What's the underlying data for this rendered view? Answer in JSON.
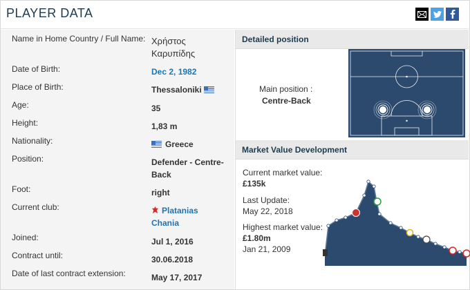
{
  "header": {
    "title": "PLAYER DATA",
    "share_icons": [
      "mail-icon",
      "twitter-icon",
      "facebook-icon"
    ]
  },
  "player": {
    "rows": [
      {
        "label": "Name in Home Country / Full Name:",
        "value": "Χρήστος\nΚαρυπίδης"
      },
      {
        "label": "Date of Birth:",
        "value": "Dec 2, 1982"
      },
      {
        "label": "Place of Birth:",
        "value": "Thessaloniki"
      },
      {
        "label": "Age:",
        "value": "35"
      },
      {
        "label": "Height:",
        "value": "1,83 m"
      },
      {
        "label": "Nationality:",
        "value": "Greece"
      },
      {
        "label": "Position:",
        "value": "Defender - Centre-\nBack"
      },
      {
        "label": "Foot:",
        "value": "right"
      },
      {
        "label": "Current club:",
        "value": "Platanias\nChania"
      },
      {
        "label": "Joined:",
        "value": "Jul 1, 2016"
      },
      {
        "label": "Contract until:",
        "value": "30.06.2018"
      },
      {
        "label": "Date of last contract extension:",
        "value": "May 17, 2017"
      }
    ]
  },
  "detailed_position": {
    "heading": "Detailed position",
    "main_label": "Main position :",
    "main_value": "Centre-Back"
  },
  "market_value": {
    "heading": "Market Value Development",
    "current_label": "Current market value:",
    "current_value": "£135k",
    "update_label": "Last Update:",
    "update_date": "May 22, 2018",
    "highest_label": "Highest market value:",
    "highest_value": "£1.80m",
    "highest_date": "Jan 21, 2009"
  },
  "colors": {
    "navy": "#1d3b4e",
    "link": "#1d75b3",
    "pitch": "#2c4a6e",
    "area_fill": "#2c4a6e"
  }
}
